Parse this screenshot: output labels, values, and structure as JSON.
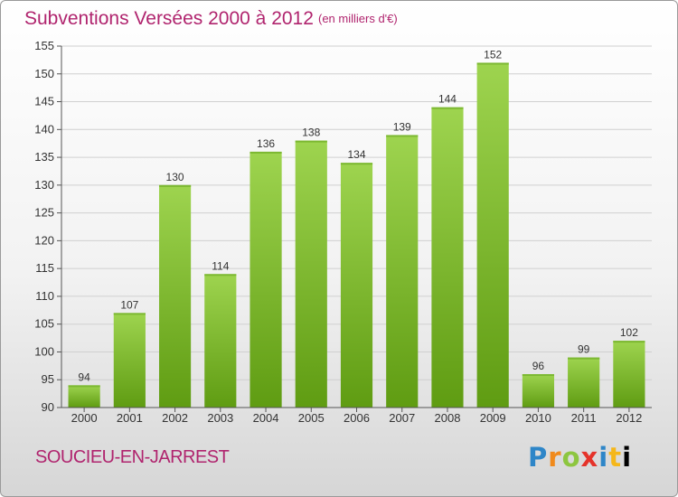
{
  "header": {
    "title": "Subventions Versées 2000 à 2012",
    "subtitle": "(en milliers d'€)"
  },
  "footer": {
    "commune": "SOUCIEU-EN-JARREST",
    "logo_letters": [
      "P",
      "r",
      "o",
      "x",
      "i",
      "t",
      "i"
    ]
  },
  "colors": {
    "title": "#b0246e",
    "bar_top": "#9ed44f",
    "bar_bottom": "#5f9c12",
    "grid": "#d0d0d0"
  },
  "chart_data": {
    "type": "bar",
    "categories": [
      "2000",
      "2001",
      "2002",
      "2003",
      "2004",
      "2005",
      "2006",
      "2007",
      "2008",
      "2009",
      "2010",
      "2011",
      "2012"
    ],
    "values": [
      94,
      107,
      130,
      114,
      136,
      138,
      134,
      139,
      144,
      152,
      96,
      99,
      102
    ],
    "ylim": [
      90,
      155
    ],
    "yticks": [
      90,
      95,
      100,
      105,
      110,
      115,
      120,
      125,
      130,
      135,
      140,
      145,
      150,
      155
    ],
    "grid": true
  }
}
